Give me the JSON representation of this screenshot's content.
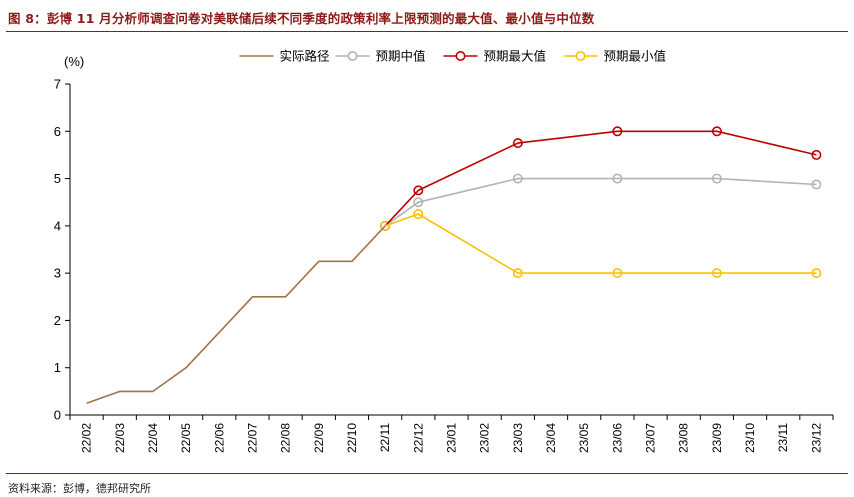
{
  "figure": {
    "title": "图 8：彭博 11 月分析师调查问卷对美联储后续不同季度的政策利率上限预测的最大值、最小值与中位数",
    "source": "资料来源：彭博，德邦研究所"
  },
  "colors": {
    "actual": "#a0744b",
    "median": "#b3b3b3",
    "max": "#c00000",
    "min": "#ffc000",
    "rule": "#8c1a17"
  },
  "chart_data": {
    "type": "line",
    "ylabel": "(%)",
    "ylim": [
      0,
      7
    ],
    "yticks": [
      0,
      1,
      2,
      3,
      4,
      5,
      6,
      7
    ],
    "grid": false,
    "legend_position": "top",
    "categories": [
      "22/02",
      "22/03",
      "22/04",
      "22/05",
      "22/06",
      "22/07",
      "22/08",
      "22/09",
      "22/10",
      "22/11",
      "22/12",
      "23/01",
      "23/02",
      "23/03",
      "23/04",
      "23/05",
      "23/06",
      "23/07",
      "23/08",
      "23/09",
      "23/10",
      "23/11",
      "23/12"
    ],
    "series": [
      {
        "name": "实际路径",
        "color": "#a0744b",
        "marker": false,
        "values": [
          0.25,
          0.5,
          0.5,
          1.0,
          1.75,
          2.5,
          2.5,
          3.25,
          3.25,
          4.0,
          null,
          null,
          null,
          null,
          null,
          null,
          null,
          null,
          null,
          null,
          null,
          null,
          null
        ]
      },
      {
        "name": "预期中值",
        "color": "#b3b3b3",
        "marker": true,
        "values": [
          null,
          null,
          null,
          null,
          null,
          null,
          null,
          null,
          null,
          4.0,
          4.5,
          null,
          null,
          5.0,
          null,
          null,
          5.0,
          null,
          null,
          5.0,
          null,
          null,
          4.875
        ]
      },
      {
        "name": "预期最大值",
        "color": "#c00000",
        "marker": true,
        "values": [
          null,
          null,
          null,
          null,
          null,
          null,
          null,
          null,
          null,
          4.0,
          4.75,
          null,
          null,
          5.75,
          null,
          null,
          6.0,
          null,
          null,
          6.0,
          null,
          null,
          5.5
        ]
      },
      {
        "name": "预期最小值",
        "color": "#ffc000",
        "marker": true,
        "values": [
          null,
          null,
          null,
          null,
          null,
          null,
          null,
          null,
          null,
          4.0,
          4.25,
          null,
          null,
          3.0,
          null,
          null,
          3.0,
          null,
          null,
          3.0,
          null,
          null,
          3.0
        ]
      }
    ]
  }
}
